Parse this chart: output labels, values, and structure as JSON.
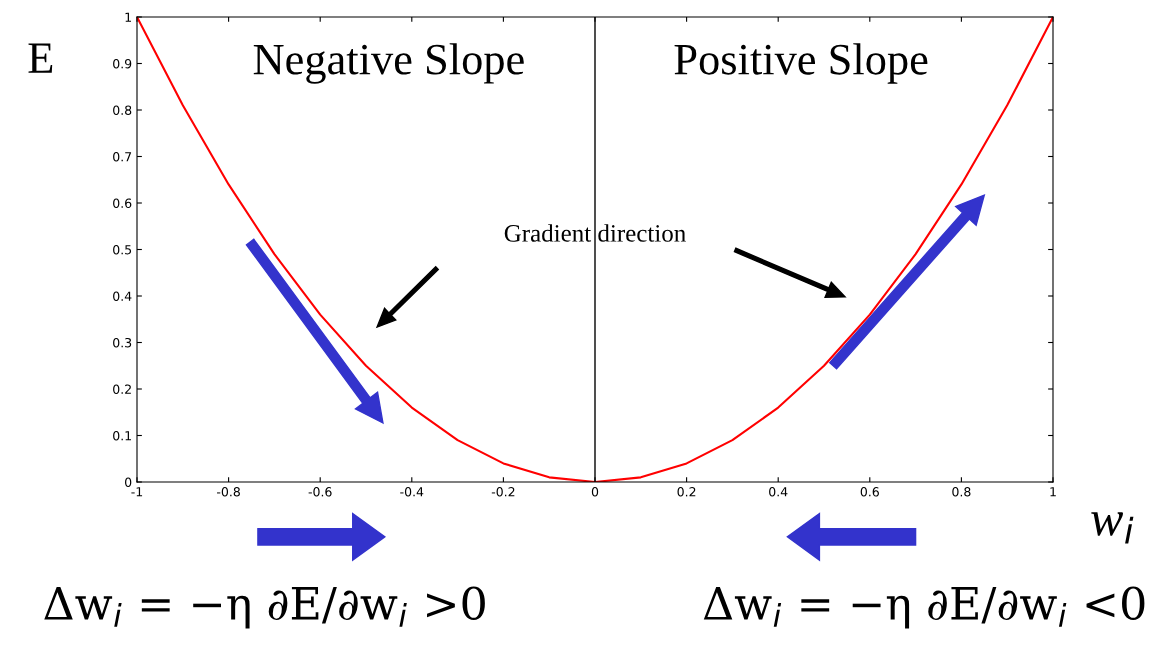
{
  "chart_data": {
    "type": "line",
    "x": [
      -1,
      -0.9,
      -0.8,
      -0.7,
      -0.6,
      -0.5,
      -0.4,
      -0.3,
      -0.2,
      -0.1,
      0,
      0.1,
      0.2,
      0.3,
      0.4,
      0.5,
      0.6,
      0.7,
      0.8,
      0.9,
      1
    ],
    "series": [
      {
        "color": "#ff0000",
        "values": [
          1,
          0.81,
          0.64,
          0.49,
          0.36,
          0.25,
          0.16,
          0.09,
          0.04,
          0.01,
          0,
          0.01,
          0.04,
          0.09,
          0.16,
          0.25,
          0.36,
          0.49,
          0.64,
          0.81,
          1
        ]
      }
    ],
    "xlim": [
      -1,
      1
    ],
    "ylim": [
      0,
      1
    ],
    "xticks": [
      -1,
      -0.8,
      -0.6,
      -0.4,
      -0.2,
      0,
      0.2,
      0.4,
      0.6,
      0.8,
      1
    ],
    "yticks": [
      0,
      0.1,
      0.2,
      0.3,
      0.4,
      0.5,
      0.6,
      0.7,
      0.8,
      0.9,
      1
    ],
    "xlabel": "w$_{i}$",
    "ylabel": "E",
    "ref_lines": [
      {
        "axis": "x",
        "value": 0,
        "color": "#000000"
      }
    ],
    "annotations": [
      "Negative Slope",
      "Positive Slope",
      "Gradient direction",
      "Δw$_{i}$ = −η ∂E/∂w$_{i}$ >0",
      "Δw$_{i}$ = −η ∂E/∂w$_{i}$ <0"
    ],
    "grid": false,
    "legend": false,
    "marker": "none",
    "line_style": "solid"
  }
}
